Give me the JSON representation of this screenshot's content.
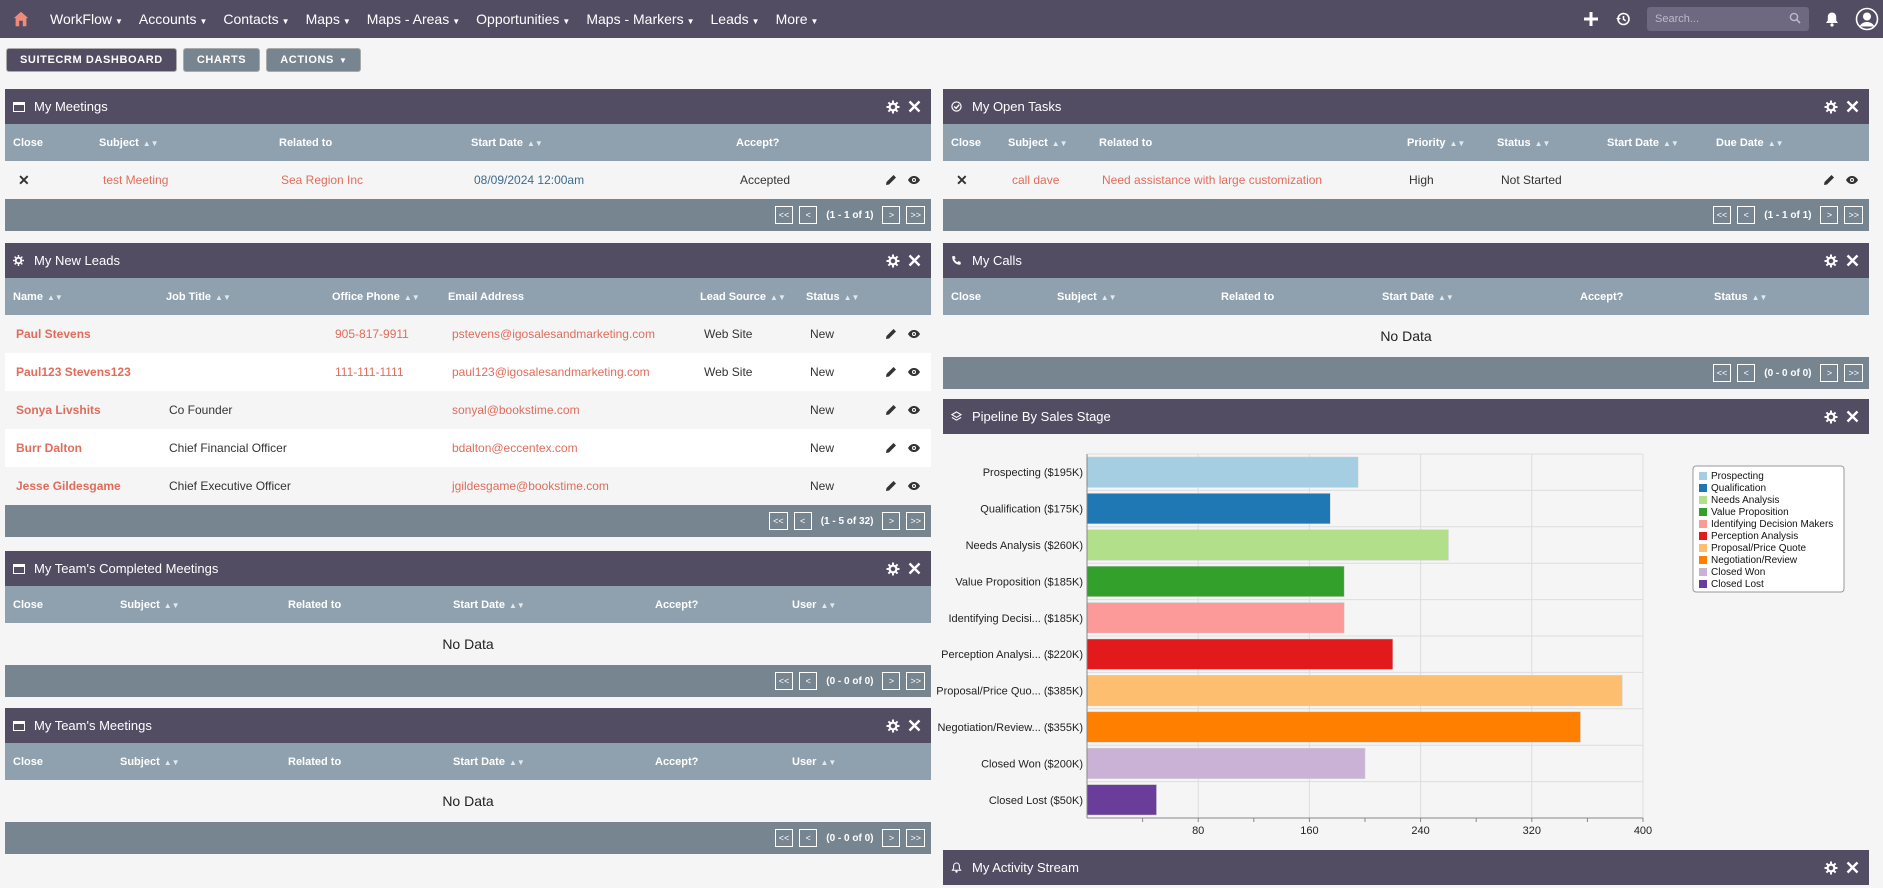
{
  "nav": {
    "items": [
      "WorkFlow",
      "Accounts",
      "Contacts",
      "Maps",
      "Maps - Areas",
      "Opportunities",
      "Maps - Markers",
      "Leads",
      "More"
    ],
    "search_placeholder": "Search..."
  },
  "toolbar": {
    "dashboard": "SUITECRM DASHBOARD",
    "charts": "CHARTS",
    "actions": "ACTIONS"
  },
  "meetings": {
    "title": "My Meetings",
    "headers": [
      "Close",
      "Subject",
      "Related to",
      "Start Date",
      "Accept?"
    ],
    "rows": [
      {
        "subject": "test Meeting",
        "related": "Sea Region Inc",
        "start": "08/09/2024 12:00am",
        "accept": "Accepted"
      }
    ],
    "pager": "(1 - 1 of 1)"
  },
  "leads": {
    "title": "My New Leads",
    "headers": [
      "Name",
      "Job Title",
      "Office Phone",
      "Email Address",
      "Lead Source",
      "Status"
    ],
    "rows": [
      {
        "name": "Paul Stevens",
        "job": "",
        "phone": "905-817-9911",
        "email": "pstevens@igosalesandmarketing.com",
        "source": "Web Site",
        "status": "New"
      },
      {
        "name": "Paul123 Stevens123",
        "job": "",
        "phone": "111-111-1111",
        "email": "paul123@igosalesandmarketing.com",
        "source": "Web Site",
        "status": "New"
      },
      {
        "name": "Sonya Livshits",
        "job": "Co Founder",
        "phone": "",
        "email": "sonyal@bookstime.com",
        "source": "",
        "status": "New"
      },
      {
        "name": "Burr Dalton",
        "job": "Chief Financial Officer",
        "phone": "",
        "email": "bdalton@eccentex.com",
        "source": "",
        "status": "New"
      },
      {
        "name": "Jesse Gildesgame",
        "job": "Chief Executive Officer",
        "phone": "",
        "email": "jgildesgame@bookstime.com",
        "source": "",
        "status": "New"
      }
    ],
    "pager": "(1 - 5 of 32)"
  },
  "team_completed": {
    "title": "My Team's Completed Meetings",
    "headers": [
      "Close",
      "Subject",
      "Related to",
      "Start Date",
      "Accept?",
      "User"
    ],
    "nodata": "No Data",
    "pager": "(0 - 0 of 0)"
  },
  "team_meetings": {
    "title": "My Team's Meetings",
    "headers": [
      "Close",
      "Subject",
      "Related to",
      "Start Date",
      "Accept?",
      "User"
    ],
    "nodata": "No Data",
    "pager": "(0 - 0 of 0)"
  },
  "tasks": {
    "title": "My Open Tasks",
    "headers": [
      "Close",
      "Subject",
      "Related to",
      "Priority",
      "Status",
      "Start Date",
      "Due Date"
    ],
    "rows": [
      {
        "subject": "call dave",
        "related": "Need assistance with large customization",
        "priority": "High",
        "status": "Not Started"
      }
    ],
    "pager": "(1 - 1 of 1)"
  },
  "calls": {
    "title": "My Calls",
    "headers": [
      "Close",
      "Subject",
      "Related to",
      "Start Date",
      "Accept?",
      "Status"
    ],
    "nodata": "No Data",
    "pager": "(0 - 0 of 0)"
  },
  "pipeline": {
    "title": "Pipeline By Sales Stage"
  },
  "activity": {
    "title": "My Activity Stream"
  },
  "pager_buttons": {
    "first": "<<",
    "prev": "<",
    "next": ">",
    "last": ">>"
  },
  "chart_data": {
    "type": "bar",
    "orientation": "horizontal",
    "categories": [
      "Prospecting ($195K)",
      "Qualification ($175K)",
      "Needs Analysis ($260K)",
      "Value Proposition ($185K)",
      "Identifying Decisi... ($185K)",
      "Perception Analysi... ($220K)",
      "Proposal/Price Quo... ($385K)",
      "Negotiation/Review... ($355K)",
      "Closed Won ($200K)",
      "Closed Lost ($50K)"
    ],
    "values": [
      195,
      175,
      260,
      185,
      185,
      220,
      385,
      355,
      200,
      50
    ],
    "colors": [
      "#a6cee3",
      "#1f78b4",
      "#b2df8a",
      "#33a02c",
      "#fb9a99",
      "#e31a1c",
      "#fdbf6f",
      "#ff7f00",
      "#cab2d6",
      "#6a3d9a"
    ],
    "legend": [
      "Prospecting",
      "Qualification",
      "Needs Analysis",
      "Value Proposition",
      "Identifying Decision Makers",
      "Perception Analysis",
      "Proposal/Price Quote",
      "Negotiation/Review",
      "Closed Won",
      "Closed Lost"
    ],
    "xticks": [
      80,
      160,
      240,
      320,
      400
    ],
    "xlim": [
      0,
      400
    ],
    "legend_position": "top-right",
    "grid": true
  }
}
